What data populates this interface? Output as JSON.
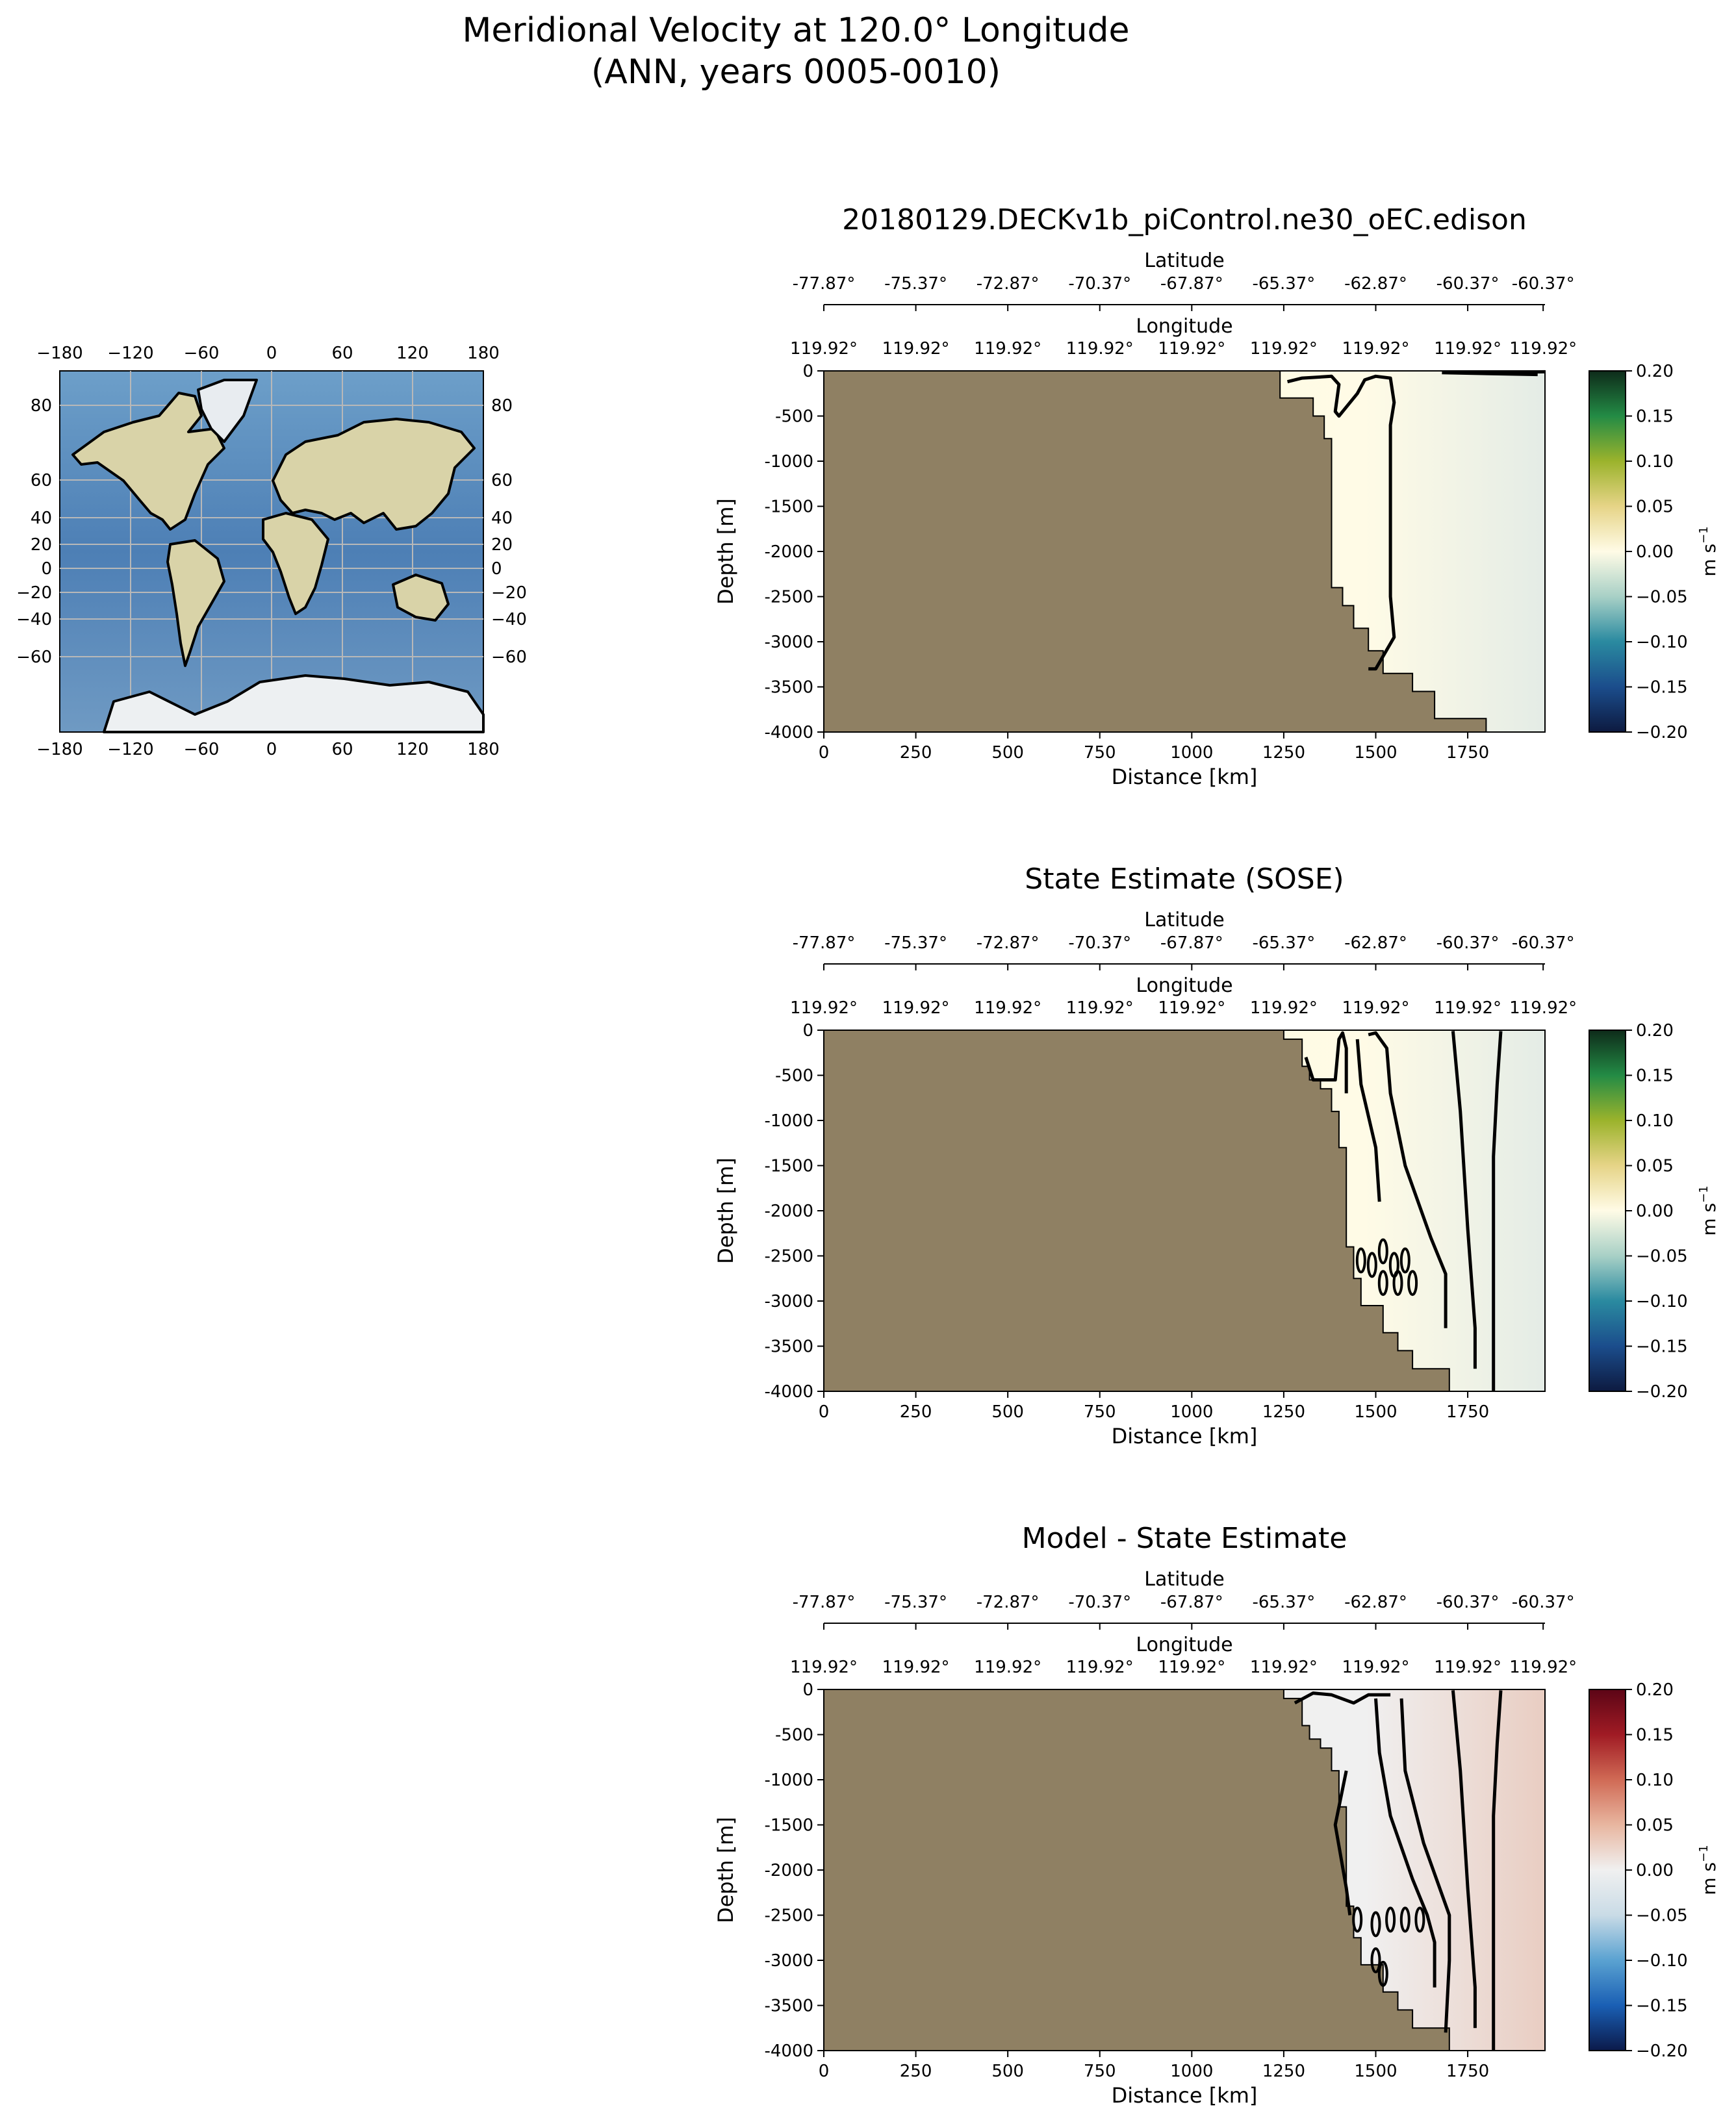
{
  "figure": {
    "title_line1": "Meridional Velocity at 120.0° Longitude",
    "title_line2": "(ANN, years 0005-0010)"
  },
  "map": {
    "x_ticks": [
      "−180",
      "−120",
      "−60",
      "0",
      "60",
      "120",
      "180"
    ],
    "y_ticks": [
      "80",
      "60",
      "40",
      "20",
      "0",
      "−20",
      "−40",
      "−60"
    ],
    "y_tick_lats": [
      80,
      60,
      40,
      20,
      0,
      -20,
      -40,
      -60
    ]
  },
  "common": {
    "top_axis_label": "Latitude",
    "mid_axis_label": "Longitude",
    "xlabel": "Distance [km]",
    "ylabel": "Depth [m]",
    "cbar_label_base": "m s",
    "cbar_label_exp": "−1",
    "lat_ticks": [
      "-77.87°",
      "-75.37°",
      "-72.87°",
      "-70.37°",
      "-67.87°",
      "-65.37°",
      "-62.87°",
      "-60.37°"
    ],
    "lon_ticks": [
      "119.92°",
      "119.92°",
      "119.92°",
      "119.92°",
      "119.92°",
      "119.92°",
      "119.92°",
      "119.92°"
    ],
    "cbar_ticks": [
      "0.20",
      "0.15",
      "0.10",
      "0.05",
      "0.00",
      "−0.05",
      "−0.10",
      "−0.15",
      "−0.20"
    ],
    "land_color": "#8f8063",
    "contour_color": "#000000"
  },
  "chart_data": [
    {
      "type": "heatmap",
      "title": "20180129.DECKv1b_piControl.ne30_oEC.edison",
      "x_ticks": [
        0,
        250,
        500,
        750,
        1000,
        1250,
        1500,
        1750
      ],
      "y_ticks": [
        0,
        -500,
        -1000,
        -1500,
        -2000,
        -2500,
        -3000,
        -3500,
        -4000
      ],
      "xlim": [
        0,
        1960
      ],
      "ylim": [
        -4000,
        0
      ],
      "clim": [
        -0.2,
        0.2
      ],
      "colormap": [
        "#0d1a40",
        "#1b4d8c",
        "#2a8aa0",
        "#a8d0c6",
        "#fffbe6",
        "#e6d487",
        "#9bb32c",
        "#238b45",
        "#0e2b1a"
      ],
      "bathymetry": [
        [
          1240,
          0
        ],
        [
          1240,
          -300
        ],
        [
          1330,
          -300
        ],
        [
          1330,
          -500
        ],
        [
          1360,
          -500
        ],
        [
          1360,
          -750
        ],
        [
          1380,
          -750
        ],
        [
          1380,
          -2400
        ],
        [
          1410,
          -2400
        ],
        [
          1410,
          -2600
        ],
        [
          1440,
          -2600
        ],
        [
          1440,
          -2850
        ],
        [
          1480,
          -2850
        ],
        [
          1480,
          -3100
        ],
        [
          1520,
          -3100
        ],
        [
          1520,
          -3350
        ],
        [
          1600,
          -3350
        ],
        [
          1600,
          -3550
        ],
        [
          1660,
          -3550
        ],
        [
          1660,
          -3850
        ],
        [
          1800,
          -3850
        ],
        [
          1800,
          -4000
        ]
      ],
      "field_color": "#fbf9dc",
      "contours": [
        [
          [
            1260,
            -120
          ],
          [
            1300,
            -80
          ],
          [
            1380,
            -60
          ],
          [
            1400,
            -150
          ],
          [
            1390,
            -450
          ],
          [
            1400,
            -500
          ],
          [
            1450,
            -250
          ],
          [
            1470,
            -100
          ],
          [
            1500,
            -60
          ],
          [
            1540,
            -80
          ],
          [
            1550,
            -350
          ],
          [
            1540,
            -600
          ],
          [
            1540,
            -2500
          ],
          [
            1550,
            -2950
          ],
          [
            1500,
            -3300
          ],
          [
            1480,
            -3300
          ]
        ],
        [
          [
            1680,
            -20
          ],
          [
            1940,
            -40
          ]
        ],
        [
          [
            1720,
            -20
          ],
          [
            1960,
            -10
          ]
        ]
      ]
    },
    {
      "type": "heatmap",
      "title": "State Estimate (SOSE)",
      "x_ticks": [
        0,
        250,
        500,
        750,
        1000,
        1250,
        1500,
        1750
      ],
      "y_ticks": [
        0,
        -500,
        -1000,
        -1500,
        -2000,
        -2500,
        -3000,
        -3500,
        -4000
      ],
      "xlim": [
        0,
        1960
      ],
      "ylim": [
        -4000,
        0
      ],
      "clim": [
        -0.2,
        0.2
      ],
      "colormap": [
        "#0d1a40",
        "#1b4d8c",
        "#2a8aa0",
        "#a8d0c6",
        "#fffbe6",
        "#e6d487",
        "#9bb32c",
        "#238b45",
        "#0e2b1a"
      ],
      "bathymetry": [
        [
          1250,
          0
        ],
        [
          1250,
          -100
        ],
        [
          1300,
          -100
        ],
        [
          1300,
          -400
        ],
        [
          1320,
          -400
        ],
        [
          1320,
          -550
        ],
        [
          1350,
          -550
        ],
        [
          1350,
          -650
        ],
        [
          1380,
          -650
        ],
        [
          1380,
          -900
        ],
        [
          1400,
          -900
        ],
        [
          1400,
          -1300
        ],
        [
          1420,
          -1300
        ],
        [
          1420,
          -2400
        ],
        [
          1440,
          -2400
        ],
        [
          1440,
          -2750
        ],
        [
          1460,
          -2750
        ],
        [
          1460,
          -3050
        ],
        [
          1520,
          -3050
        ],
        [
          1520,
          -3350
        ],
        [
          1560,
          -3350
        ],
        [
          1560,
          -3550
        ],
        [
          1600,
          -3550
        ],
        [
          1600,
          -3750
        ],
        [
          1700,
          -3750
        ],
        [
          1700,
          -4000
        ]
      ],
      "field_color": "#fbf9dc",
      "contours": [
        [
          [
            1310,
            -300
          ],
          [
            1330,
            -550
          ],
          [
            1390,
            -550
          ],
          [
            1400,
            -100
          ],
          [
            1410,
            -30
          ],
          [
            1420,
            -200
          ],
          [
            1420,
            -700
          ]
        ],
        [
          [
            1480,
            -50
          ],
          [
            1500,
            -30
          ],
          [
            1530,
            -200
          ],
          [
            1540,
            -700
          ],
          [
            1580,
            -1500
          ],
          [
            1650,
            -2300
          ],
          [
            1690,
            -2700
          ],
          [
            1690,
            -3300
          ]
        ],
        [
          [
            1450,
            -100
          ],
          [
            1460,
            -600
          ],
          [
            1500,
            -1300
          ],
          [
            1510,
            -1900
          ]
        ],
        [
          [
            1710,
            -10
          ],
          [
            1730,
            -900
          ],
          [
            1750,
            -2200
          ],
          [
            1770,
            -3300
          ],
          [
            1770,
            -3750
          ]
        ],
        [
          [
            1840,
            -10
          ],
          [
            1830,
            -600
          ],
          [
            1820,
            -1400
          ],
          [
            1820,
            -2800
          ],
          [
            1820,
            -4000
          ]
        ]
      ],
      "contour_ovals": [
        [
          1460,
          -2550
        ],
        [
          1490,
          -2600
        ],
        [
          1520,
          -2450
        ],
        [
          1550,
          -2600
        ],
        [
          1580,
          -2550
        ],
        [
          1520,
          -2800
        ],
        [
          1560,
          -2800
        ],
        [
          1600,
          -2800
        ]
      ]
    },
    {
      "type": "heatmap",
      "title": "Model - State Estimate",
      "x_ticks": [
        0,
        250,
        500,
        750,
        1000,
        1250,
        1500,
        1750
      ],
      "y_ticks": [
        0,
        -500,
        -1000,
        -1500,
        -2000,
        -2500,
        -3000,
        -3500,
        -4000
      ],
      "xlim": [
        0,
        1960
      ],
      "ylim": [
        -4000,
        0
      ],
      "clim": [
        -0.2,
        0.2
      ],
      "colormap": [
        "#0b1a4a",
        "#1a5fb4",
        "#5aa2d1",
        "#c9dbe6",
        "#f0f0f0",
        "#e8b6a0",
        "#d06a55",
        "#a01b24",
        "#5c0516"
      ],
      "bathymetry": [
        [
          1250,
          0
        ],
        [
          1250,
          -100
        ],
        [
          1300,
          -100
        ],
        [
          1300,
          -400
        ],
        [
          1320,
          -400
        ],
        [
          1320,
          -550
        ],
        [
          1350,
          -550
        ],
        [
          1350,
          -650
        ],
        [
          1380,
          -650
        ],
        [
          1380,
          -900
        ],
        [
          1400,
          -900
        ],
        [
          1400,
          -1300
        ],
        [
          1420,
          -1300
        ],
        [
          1420,
          -2400
        ],
        [
          1440,
          -2400
        ],
        [
          1440,
          -2750
        ],
        [
          1460,
          -2750
        ],
        [
          1460,
          -3050
        ],
        [
          1520,
          -3050
        ],
        [
          1520,
          -3350
        ],
        [
          1560,
          -3350
        ],
        [
          1560,
          -3550
        ],
        [
          1600,
          -3550
        ],
        [
          1600,
          -3750
        ],
        [
          1700,
          -3750
        ],
        [
          1700,
          -4000
        ]
      ],
      "field_color": "#f3ece9",
      "contours": [
        [
          [
            1280,
            -150
          ],
          [
            1330,
            -40
          ],
          [
            1380,
            -60
          ],
          [
            1440,
            -150
          ],
          [
            1480,
            -60
          ],
          [
            1540,
            -60
          ]
        ],
        [
          [
            1420,
            -900
          ],
          [
            1390,
            -1500
          ],
          [
            1420,
            -2200
          ],
          [
            1430,
            -2500
          ]
        ],
        [
          [
            1500,
            -100
          ],
          [
            1510,
            -700
          ],
          [
            1540,
            -1400
          ],
          [
            1600,
            -2100
          ],
          [
            1640,
            -2500
          ],
          [
            1660,
            -2800
          ],
          [
            1660,
            -3300
          ]
        ],
        [
          [
            1570,
            -100
          ],
          [
            1580,
            -900
          ],
          [
            1630,
            -1700
          ],
          [
            1700,
            -2500
          ],
          [
            1700,
            -3000
          ],
          [
            1690,
            -3800
          ]
        ],
        [
          [
            1710,
            -10
          ],
          [
            1730,
            -900
          ],
          [
            1750,
            -2200
          ],
          [
            1770,
            -3300
          ],
          [
            1770,
            -3750
          ]
        ],
        [
          [
            1840,
            -10
          ],
          [
            1830,
            -600
          ],
          [
            1820,
            -1400
          ],
          [
            1820,
            -2800
          ],
          [
            1820,
            -4000
          ]
        ]
      ],
      "contour_ovals": [
        [
          1450,
          -2550
        ],
        [
          1500,
          -2600
        ],
        [
          1540,
          -2550
        ],
        [
          1580,
          -2550
        ],
        [
          1620,
          -2550
        ],
        [
          1500,
          -3000
        ],
        [
          1520,
          -3150
        ]
      ]
    }
  ]
}
